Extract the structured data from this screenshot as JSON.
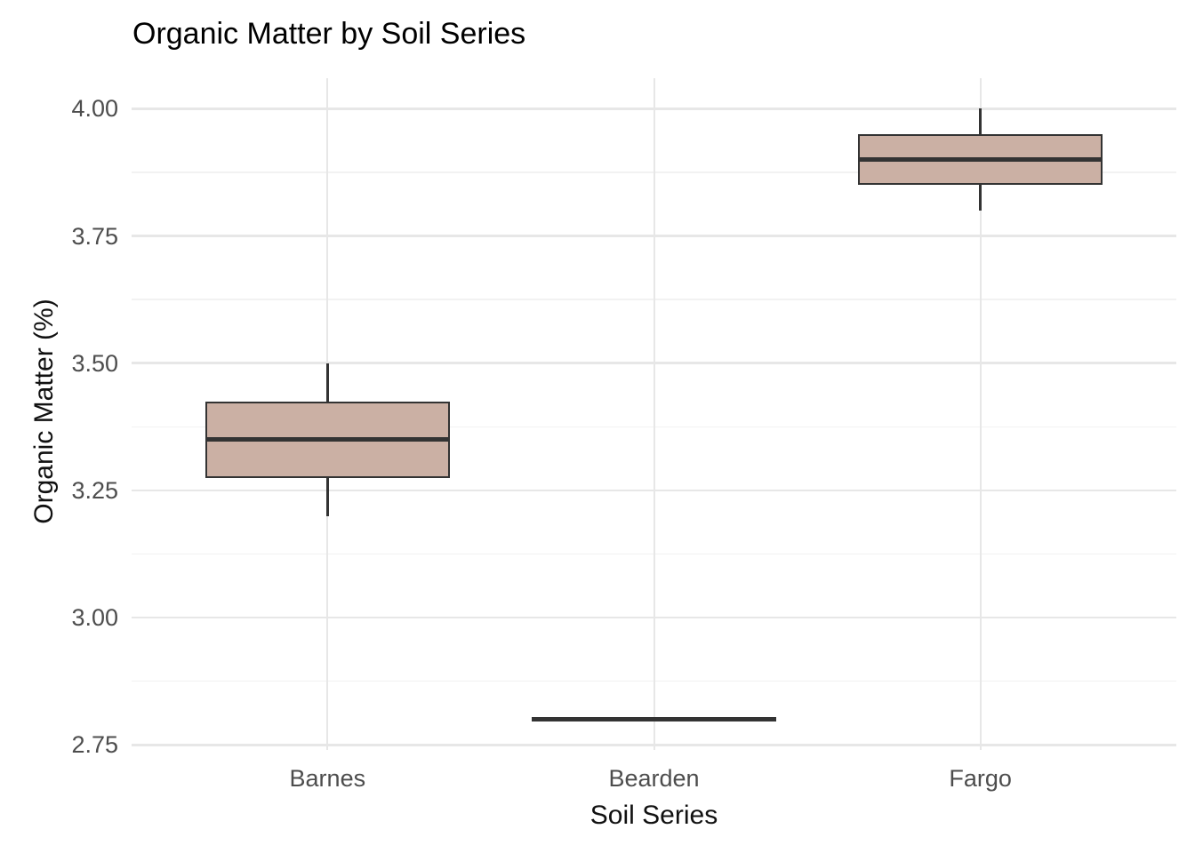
{
  "chart_data": {
    "type": "boxplot",
    "title": "Organic Matter by Soil Series",
    "xlabel": "Soil Series",
    "ylabel": "Organic Matter (%)",
    "categories": [
      "Barnes",
      "Bearden",
      "Fargo"
    ],
    "series": [
      {
        "name": "Barnes",
        "min": 3.2,
        "q1": 3.275,
        "median": 3.35,
        "q3": 3.425,
        "max": 3.5
      },
      {
        "name": "Bearden",
        "min": 2.8,
        "q1": 2.8,
        "median": 2.8,
        "q3": 2.8,
        "max": 2.8
      },
      {
        "name": "Fargo",
        "min": 3.8,
        "q1": 3.85,
        "median": 3.9,
        "q3": 3.95,
        "max": 4.0
      }
    ],
    "y_axis": {
      "ticks": [
        2.75,
        3.0,
        3.25,
        3.5,
        3.75,
        4.0
      ],
      "tick_labels": [
        "2.75",
        "3.00",
        "3.25",
        "3.50",
        "3.75",
        "4.00"
      ],
      "minor_ticks": [
        2.875,
        3.125,
        3.375,
        3.625,
        3.875
      ],
      "range": [
        2.74,
        4.06
      ]
    },
    "grid": "horizontal major+minor gridlines, one vertical gridline per category",
    "legend": "none",
    "style": {
      "box_fill": "#cbb0a4",
      "box_stroke": "#333333",
      "grid_major_color": "#e7e7e7",
      "grid_minor_color": "#f2f2f2",
      "tick_label_color": "#4d4d4d",
      "title_color": "#000000",
      "background": "#ffffff"
    }
  }
}
